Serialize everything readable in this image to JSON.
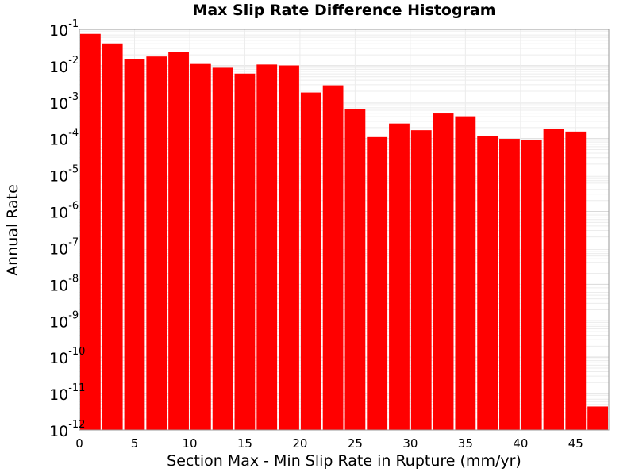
{
  "chart_data": {
    "type": "bar",
    "title": "Max Slip Rate Difference Histogram",
    "xlabel": "Section Max - Min Slip Rate in Rupture (mm/yr)",
    "ylabel": "Annual Rate",
    "y_scale": "log",
    "ylim": [
      1e-12,
      0.1
    ],
    "xlim": [
      0,
      48
    ],
    "bin_width": 2,
    "x_ticks": [
      0,
      5,
      10,
      15,
      20,
      25,
      30,
      35,
      40,
      45
    ],
    "y_ticks": [
      {
        "base": "10",
        "exp": "-1"
      },
      {
        "base": "10",
        "exp": "-2"
      },
      {
        "base": "10",
        "exp": "-3"
      },
      {
        "base": "10",
        "exp": "-4"
      },
      {
        "base": "10",
        "exp": "-5"
      },
      {
        "base": "10",
        "exp": "-6"
      },
      {
        "base": "10",
        "exp": "-7"
      },
      {
        "base": "10",
        "exp": "-8"
      },
      {
        "base": "10",
        "exp": "-9"
      },
      {
        "base": "10",
        "exp": "-10"
      },
      {
        "base": "10",
        "exp": "-11"
      },
      {
        "base": "10",
        "exp": "-12"
      }
    ],
    "grid": true,
    "bar_color": "#ff0000",
    "bins": [
      {
        "x": 1,
        "value": 0.075
      },
      {
        "x": 3,
        "value": 0.041
      },
      {
        "x": 5,
        "value": 0.0155
      },
      {
        "x": 7,
        "value": 0.018
      },
      {
        "x": 9,
        "value": 0.024
      },
      {
        "x": 11,
        "value": 0.0112
      },
      {
        "x": 13,
        "value": 0.0088
      },
      {
        "x": 15,
        "value": 0.0061
      },
      {
        "x": 17,
        "value": 0.0108
      },
      {
        "x": 19,
        "value": 0.0102
      },
      {
        "x": 21,
        "value": 0.00185
      },
      {
        "x": 23,
        "value": 0.0029
      },
      {
        "x": 25,
        "value": 0.00064
      },
      {
        "x": 27,
        "value": 0.00011
      },
      {
        "x": 29,
        "value": 0.00026
      },
      {
        "x": 31,
        "value": 0.00017
      },
      {
        "x": 33,
        "value": 0.00049
      },
      {
        "x": 35,
        "value": 0.00041
      },
      {
        "x": 37,
        "value": 0.000115
      },
      {
        "x": 39,
        "value": 9.85e-05
      },
      {
        "x": 41,
        "value": 9.2e-05
      },
      {
        "x": 43,
        "value": 0.000182
      },
      {
        "x": 45,
        "value": 0.000156
      },
      {
        "x": 47,
        "value": 4.4e-12
      }
    ]
  }
}
